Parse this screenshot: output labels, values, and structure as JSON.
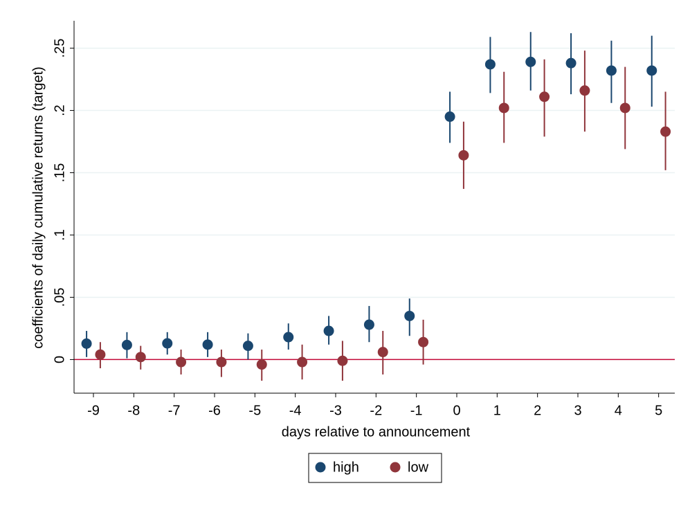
{
  "chart_data": {
    "type": "errorbar",
    "x_label": "days relative to announcement",
    "y_label": "coefficients of daily cumulative returns (target)",
    "x": [
      -9,
      -8,
      -7,
      -6,
      -5,
      -4,
      -3,
      -2,
      -1,
      0,
      1,
      2,
      3,
      4,
      5
    ],
    "series": [
      {
        "name": "high",
        "color": "#1a476f",
        "values": [
          0.0128,
          0.0117,
          0.013,
          0.012,
          0.011,
          0.018,
          0.023,
          0.028,
          0.035,
          0.195,
          0.237,
          0.239,
          0.238,
          0.232,
          0.232
        ],
        "lower": [
          0.002,
          0.001,
          0.004,
          0.002,
          0,
          0.008,
          0.012,
          0.014,
          0.019,
          0.174,
          0.214,
          0.216,
          0.213,
          0.206,
          0.203
        ],
        "upper": [
          0.023,
          0.022,
          0.022,
          0.022,
          0.021,
          0.029,
          0.035,
          0.043,
          0.049,
          0.215,
          0.259,
          0.263,
          0.262,
          0.256,
          0.26
        ]
      },
      {
        "name": "low",
        "color": "#90353b",
        "values": [
          0.004,
          0.002,
          -0.002,
          -0.002,
          -0.004,
          -0.002,
          -0.001,
          0.006,
          0.014,
          0.164,
          0.202,
          0.211,
          0.216,
          0.202,
          0.183
        ],
        "lower": [
          -0.007,
          -0.008,
          -0.012,
          -0.014,
          -0.017,
          -0.016,
          -0.017,
          -0.012,
          -0.004,
          0.137,
          0.174,
          0.179,
          0.183,
          0.169,
          0.152
        ],
        "upper": [
          0.014,
          0.011,
          0.008,
          0.008,
          0.008,
          0.012,
          0.015,
          0.023,
          0.032,
          0.191,
          0.231,
          0.241,
          0.248,
          0.235,
          0.215
        ]
      }
    ],
    "hline": 0,
    "hline_color": "#c10534",
    "xlim": [
      -9.48,
      5.4
    ],
    "xticks": [
      -9,
      -8,
      -7,
      -6,
      -5,
      -4,
      -3,
      -2,
      -1,
      0,
      1,
      2,
      3,
      4,
      5
    ],
    "ylim": [
      -0.027,
      0.272
    ],
    "yticks": [
      0,
      {
        "value": 0.05,
        "label": ".05"
      },
      {
        "value": 0.1,
        "label": ".1"
      },
      {
        "value": 0.15,
        "label": ".15"
      },
      {
        "value": 0.2,
        "label": ".2"
      },
      {
        "value": 0.25,
        "label": ".25"
      }
    ],
    "grid": true,
    "legend": "bottom"
  }
}
